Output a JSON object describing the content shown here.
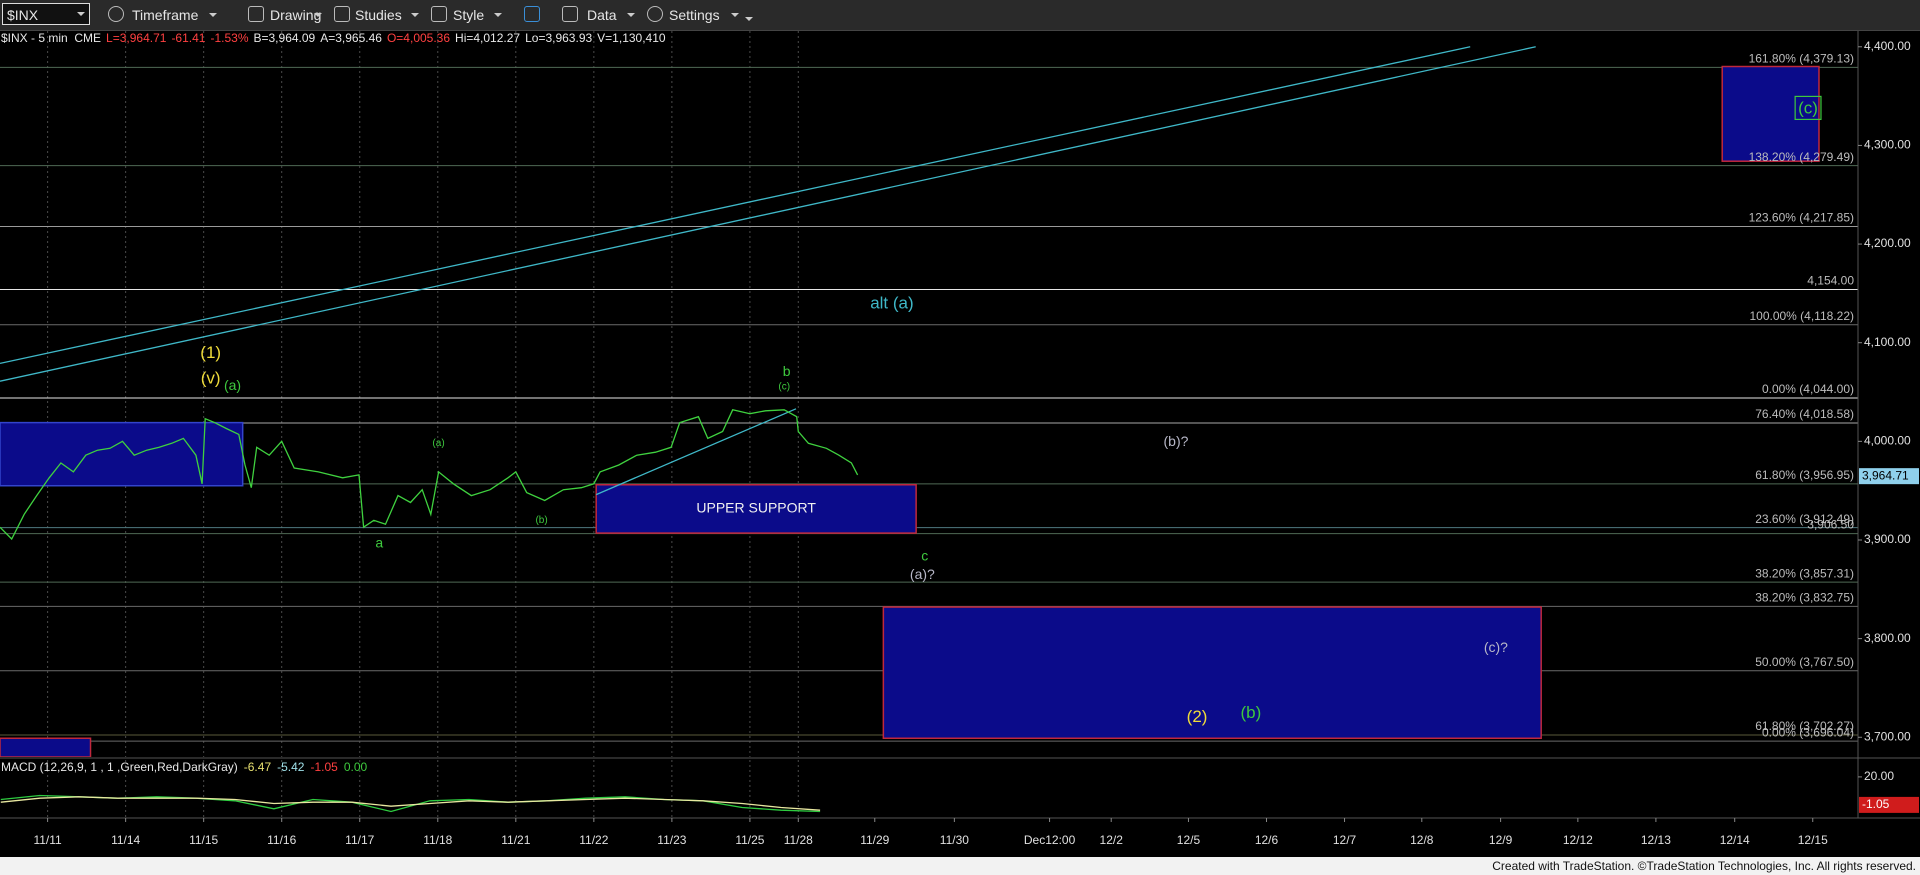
{
  "toolbar": {
    "symbol": "$INX",
    "items": [
      "Timeframe",
      "Drawing",
      "Studies",
      "Style",
      "Data",
      "Settings"
    ]
  },
  "info": {
    "symbol": "$INX - 5 min  CME",
    "last": "L=3,964.71",
    "change": "-61.41",
    "change_pct": "-1.53%",
    "bid": "B=3,964.09",
    "ask": "A=3,965.46",
    "open": "O=4,005.36",
    "high": "Hi=4,012.27",
    "low": "Lo=3,963.93",
    "volume": "V=1,130,410"
  },
  "chart_data": [
    {
      "type": "line",
      "x": [
        -0.61,
        -0.46,
        -0.3,
        -0.14,
        0.02,
        0.17,
        0.33,
        0.49,
        0.64,
        0.8,
        0.96,
        1.11,
        1.27,
        1.43,
        1.59,
        1.74,
        1.9,
        1.98,
        2.02,
        2.14,
        2.29,
        2.45,
        2.53,
        2.61,
        2.68,
        2.84,
        3.0,
        3.16,
        3.47,
        3.78,
        3.99,
        4.05,
        4.18,
        4.33,
        4.49,
        4.65,
        4.8,
        4.91,
        5.01,
        5.2,
        5.43,
        5.67,
        5.9,
        6.0,
        6.14,
        6.37,
        6.61,
        6.84,
        7.0,
        7.08,
        7.32,
        7.55,
        7.79,
        7.99,
        8.1,
        8.34,
        8.46,
        8.65,
        8.78,
        9.0,
        9.2,
        9.44,
        9.6,
        9.62,
        9.75,
        9.98,
        10.14,
        10.3,
        10.38
      ],
      "series": [
        {
          "color": "#3fd13f",
          "values": [
            3913,
            3901,
            3926,
            3945,
            3963,
            3978,
            3969,
            3986,
            3991,
            3993,
            4000,
            3986,
            3991,
            3994,
            3998,
            4003,
            3986,
            3957,
            4023,
            4019,
            4013,
            4007,
            3976,
            3953,
            3994,
            3986,
            4000,
            3973,
            3969,
            3963,
            3966,
            3913,
            3920,
            3916,
            3945,
            3938,
            3951,
            3926,
            3969,
            3957,
            3945,
            3951,
            3963,
            3969,
            3948,
            3940,
            3951,
            3953,
            3957,
            3969,
            3976,
            3986,
            3989,
            3994,
            4019,
            4025,
            4003,
            4010,
            4032,
            4028,
            4031,
            4032,
            4025,
            4010,
            3998,
            3993,
            3986,
            3978,
            3966
          ]
        }
      ],
      "xlim": [
        -0.61,
        23.2
      ],
      "ylim": [
        3680,
        4416
      ],
      "yticks": [
        {
          "value": 3700,
          "label": "3,700.00"
        },
        {
          "value": 3800,
          "label": "3,800.00"
        },
        {
          "value": 3900,
          "label": "3,900.00"
        },
        {
          "value": 4000,
          "label": "4,000.00"
        },
        {
          "value": 4100,
          "label": "4,100.00"
        },
        {
          "value": 4200,
          "label": "4,200.00"
        },
        {
          "value": 4300,
          "label": "4,300.00"
        },
        {
          "value": 4400,
          "label": "4,400.00"
        }
      ],
      "xticks": [
        {
          "value": 0,
          "label": "11/11"
        },
        {
          "value": 1,
          "label": "11/14"
        },
        {
          "value": 2,
          "label": "11/15"
        },
        {
          "value": 3,
          "label": "11/16"
        },
        {
          "value": 4,
          "label": "11/17"
        },
        {
          "value": 5,
          "label": "11/18"
        },
        {
          "value": 6,
          "label": "11/21"
        },
        {
          "value": 7,
          "label": "11/22"
        },
        {
          "value": 8,
          "label": "11/23"
        },
        {
          "value": 9,
          "label": "11/25"
        },
        {
          "value": 9.62,
          "label": "11/28"
        },
        {
          "value": 10.6,
          "label": "11/29"
        },
        {
          "value": 11.62,
          "label": "11/30"
        },
        {
          "value": 12.84,
          "label": "Dec12:00"
        },
        {
          "value": 13.63,
          "label": "12/2"
        },
        {
          "value": 14.62,
          "label": "12/5"
        },
        {
          "value": 15.62,
          "label": "12/6"
        },
        {
          "value": 16.62,
          "label": "12/7"
        },
        {
          "value": 17.61,
          "label": "12/8"
        },
        {
          "value": 18.62,
          "label": "12/9"
        },
        {
          "value": 19.61,
          "label": "12/12"
        },
        {
          "value": 20.61,
          "label": "12/13"
        },
        {
          "value": 21.62,
          "label": "12/14"
        },
        {
          "value": 22.62,
          "label": "12/15"
        }
      ],
      "last_price": {
        "value": 3964.71,
        "label": "3,964.71"
      },
      "levels": [
        {
          "label": "161.80% (4,379.13)",
          "value": 4379.13,
          "color": "#4f6a55"
        },
        {
          "label": "138.20% (4,279.49)",
          "value": 4279.49,
          "color": "#4f6a55"
        },
        {
          "label": "123.60% (4,217.85)",
          "value": 4217.85,
          "color": "#9a9a9a"
        },
        {
          "label": "4,154.00",
          "value": 4154,
          "color": "#e6e6e6"
        },
        {
          "label": "100.00% (4,118.22)",
          "value": 4118.22,
          "color": "#6a6a6a"
        },
        {
          "label": "0.00% (4,044.00)",
          "value": 4044,
          "color": "#e6e6e6"
        },
        {
          "label": "76.40% (4,018.58)",
          "value": 4018.58,
          "color": "#a8a8a8"
        },
        {
          "label": "61.80% (3,956.95)",
          "value": 3956.95,
          "color": "#4f6a55"
        },
        {
          "label": "23.60% (3,912.49)",
          "value": 3912.49,
          "color": "#4f7a80"
        },
        {
          "label": "3,906.50",
          "value": 3906.5,
          "color": "#4f6a55"
        },
        {
          "label": "38.20% (3,857.31)",
          "value": 3857.31,
          "color": "#4f6a55"
        },
        {
          "label": "38.20% (3,832.75)",
          "value": 3832.75,
          "color": "#6a6a6a"
        },
        {
          "label": "50.00% (3,767.50)",
          "value": 3767.5,
          "color": "#6a6a6a"
        },
        {
          "label": "61.80% (3,702.27)",
          "value": 3702.27,
          "color": "#5a5a3a"
        },
        {
          "label": "0.00% (3,696.04)",
          "value": 3696.04,
          "color": "#6a6a6a"
        }
      ],
      "zones": [
        {
          "x": [
            -0.61,
            2.5
          ],
          "y": [
            3955,
            4019
          ],
          "fill": "#0b0b8a",
          "stroke": "#3344cc"
        },
        {
          "x": [
            7.03,
            11.13
          ],
          "y": [
            3907,
            3956
          ],
          "fill": "#0b0b8a",
          "stroke": "#c0283c",
          "label": "UPPER SUPPORT"
        },
        {
          "x": [
            10.71,
            19.14
          ],
          "y": [
            3699,
            3832
          ],
          "fill": "#0b0b8a",
          "stroke": "#c0283c"
        },
        {
          "x": [
            21.46,
            22.7
          ],
          "y": [
            4284,
            4380
          ],
          "fill": "#0b0b8a",
          "stroke": "#c0283c"
        },
        {
          "x": [
            -0.61,
            0.55
          ],
          "y": [
            3680,
            3699
          ],
          "fill": "#0b0b8a",
          "stroke": "#c0283c"
        }
      ],
      "trendlines": [
        {
          "x": [
            -0.61,
            18.23
          ],
          "y": [
            4079,
            4400
          ],
          "color": "#3fb8c8"
        },
        {
          "x": [
            -0.61,
            19.07
          ],
          "y": [
            4061,
            4400
          ],
          "color": "#3fb8c8"
        },
        {
          "x": [
            7.03,
            9.59
          ],
          "y": [
            3946,
            4033
          ],
          "color": "#3fb8c8"
        }
      ],
      "annotations": [
        {
          "text": "(1)",
          "x": 2.09,
          "y": 4089,
          "color": "#f0dc3a",
          "size": "large"
        },
        {
          "text": "(v)",
          "x": 2.09,
          "y": 4063,
          "color": "#f0dc3a",
          "size": "large"
        },
        {
          "text": "(a)",
          "x": 2.37,
          "y": 4056,
          "color": "#3ec93e",
          "size": "medium"
        },
        {
          "text": "a",
          "x": 4.25,
          "y": 3896,
          "color": "#3ec93e",
          "size": "medium"
        },
        {
          "text": "(a)",
          "x": 5.01,
          "y": 3998,
          "color": "#3ec93e",
          "size": "small"
        },
        {
          "text": "(b)",
          "x": 6.33,
          "y": 3920,
          "color": "#3ec93e",
          "size": "small"
        },
        {
          "text": "b",
          "x": 9.47,
          "y": 4070,
          "color": "#3ec93e",
          "size": "medium"
        },
        {
          "text": "(c)",
          "x": 9.44,
          "y": 4055,
          "color": "#3ec93e",
          "size": "small"
        },
        {
          "text": "alt (a)",
          "x": 10.82,
          "y": 4139,
          "color": "#3fb8c8",
          "size": "large"
        },
        {
          "text": "(b)?",
          "x": 14.46,
          "y": 3999,
          "color": "#b8b8c8",
          "size": "medium"
        },
        {
          "text": "c",
          "x": 11.24,
          "y": 3883,
          "color": "#3ec93e",
          "size": "medium"
        },
        {
          "text": "(a)?",
          "x": 11.21,
          "y": 3864,
          "color": "#b8b8c8",
          "size": "medium"
        },
        {
          "text": "(c)?",
          "x": 18.56,
          "y": 3790,
          "color": "#b8b8c8",
          "size": "medium"
        },
        {
          "text": "(2)",
          "x": 14.73,
          "y": 3720,
          "color": "#f0dc3a",
          "size": "large"
        },
        {
          "text": "(b)",
          "x": 15.42,
          "y": 3724,
          "color": "#3ec93e",
          "size": "large"
        },
        {
          "text": "(c)",
          "x": 22.56,
          "y": 4337,
          "color": "#3ec93e",
          "size": "large",
          "box": "#3ec93e"
        }
      ]
    },
    {
      "type": "line",
      "title": "MACD (12,26,9, 1 , 1 ,Green,Red,DarkGray)",
      "readings": [
        "-6.47",
        "-5.42",
        "-1.05",
        "0.00"
      ],
      "x": [
        -0.6,
        -0.1,
        0.4,
        0.9,
        1.4,
        1.9,
        2.4,
        2.9,
        3.4,
        3.9,
        4.4,
        4.9,
        5.4,
        5.9,
        6.4,
        6.9,
        7.4,
        7.9,
        8.4,
        8.9,
        9.4,
        9.9
      ],
      "series": [
        {
          "color": "#2ecc40",
          "values": [
            3,
            6,
            5,
            4,
            5,
            4,
            2,
            -4,
            3,
            1,
            -6,
            2,
            3,
            1,
            2,
            4,
            5,
            3,
            2,
            -3,
            -5,
            -6
          ]
        },
        {
          "color": "#e8e8a0",
          "values": [
            1,
            4,
            5,
            4,
            4,
            4,
            3,
            0,
            1,
            1,
            -2,
            0,
            2,
            1,
            2,
            3,
            4,
            3,
            2,
            0,
            -3,
            -5
          ]
        }
      ],
      "xlim": [
        -0.61,
        23.2
      ],
      "ylim": [
        -10.9,
        32.7
      ],
      "yticks": [
        {
          "value": 20,
          "label": "20.00"
        }
      ],
      "last_value": {
        "value": -1.05,
        "label": "-1.05"
      }
    }
  ],
  "footer": "Created with TradeStation. ©TradeStation Technologies, Inc. All rights reserved."
}
